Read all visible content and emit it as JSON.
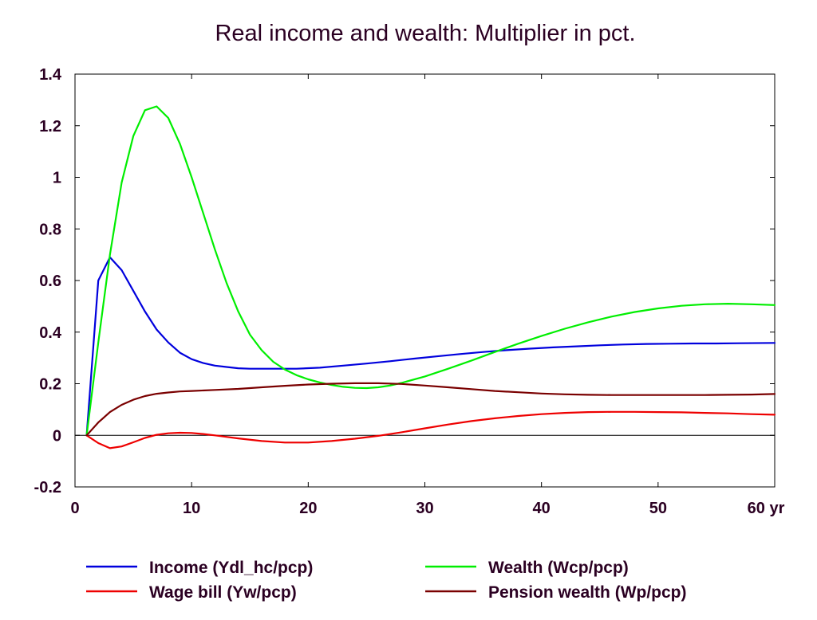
{
  "chart_data": {
    "type": "line",
    "title": "Real income and wealth: Multiplier in pct.",
    "x_unit": "yr",
    "xlim": [
      0,
      60
    ],
    "ylim": [
      -0.2,
      1.4
    ],
    "x_ticks": [
      0,
      10,
      20,
      30,
      40,
      50,
      60
    ],
    "y_ticks": [
      -0.2,
      0,
      0.2,
      0.4,
      0.6,
      0.8,
      1,
      1.2,
      1.4
    ],
    "y_tick_labels": [
      "-0.2",
      "0",
      "0.2",
      "0.4",
      "0.6",
      "0.8",
      "1",
      "1.2",
      "1.4"
    ],
    "x_tick_labels": [
      "0",
      "10",
      "20",
      "30",
      "40",
      "50",
      "60 yr"
    ],
    "grid": false,
    "legend_position": "bottom",
    "series": [
      {
        "name": "Income (Ydl_hc/pcp)",
        "color": "#0000dd",
        "x": [
          1,
          2,
          3,
          4,
          5,
          6,
          7,
          8,
          9,
          10,
          11,
          12,
          13,
          14,
          15,
          17,
          19,
          21,
          23,
          25,
          27,
          29,
          31,
          33,
          35,
          37,
          39,
          41,
          43,
          45,
          47,
          49,
          51,
          53,
          55,
          57,
          60
        ],
        "y": [
          0.0,
          0.6,
          0.69,
          0.64,
          0.56,
          0.48,
          0.41,
          0.36,
          0.32,
          0.295,
          0.28,
          0.27,
          0.265,
          0.26,
          0.258,
          0.258,
          0.258,
          0.262,
          0.27,
          0.278,
          0.287,
          0.297,
          0.306,
          0.315,
          0.323,
          0.33,
          0.336,
          0.341,
          0.345,
          0.349,
          0.352,
          0.354,
          0.355,
          0.356,
          0.356,
          0.357,
          0.358
        ]
      },
      {
        "name": "Wealth (Wcp/pcp)",
        "color": "#00ee00",
        "x": [
          1,
          2,
          3,
          4,
          5,
          6,
          7,
          8,
          9,
          10,
          11,
          12,
          13,
          14,
          15,
          16,
          17,
          18,
          19,
          20,
          21,
          22,
          23,
          24,
          25,
          26,
          27,
          28,
          30,
          32,
          34,
          36,
          38,
          40,
          42,
          44,
          46,
          48,
          50,
          52,
          54,
          56,
          58,
          60
        ],
        "y": [
          0.0,
          0.36,
          0.7,
          0.98,
          1.16,
          1.26,
          1.275,
          1.23,
          1.13,
          1.0,
          0.86,
          0.72,
          0.59,
          0.48,
          0.39,
          0.33,
          0.285,
          0.255,
          0.233,
          0.217,
          0.205,
          0.195,
          0.188,
          0.184,
          0.183,
          0.186,
          0.193,
          0.203,
          0.228,
          0.258,
          0.29,
          0.323,
          0.355,
          0.385,
          0.413,
          0.438,
          0.46,
          0.478,
          0.492,
          0.502,
          0.508,
          0.51,
          0.508,
          0.505
        ]
      },
      {
        "name": "Wage bill (Yw/pcp)",
        "color": "#ee0000",
        "x": [
          1,
          2,
          3,
          4,
          5,
          6,
          7,
          8,
          9,
          10,
          11,
          12,
          14,
          16,
          18,
          20,
          22,
          24,
          26,
          28,
          30,
          32,
          34,
          36,
          38,
          40,
          42,
          44,
          46,
          48,
          50,
          52,
          54,
          56,
          58,
          60
        ],
        "y": [
          0.0,
          -0.03,
          -0.05,
          -0.043,
          -0.027,
          -0.01,
          0.002,
          0.008,
          0.01,
          0.009,
          0.005,
          0.0,
          -0.012,
          -0.022,
          -0.028,
          -0.028,
          -0.022,
          -0.013,
          -0.002,
          0.012,
          0.027,
          0.042,
          0.055,
          0.066,
          0.075,
          0.082,
          0.087,
          0.09,
          0.091,
          0.091,
          0.09,
          0.089,
          0.087,
          0.085,
          0.082,
          0.08
        ]
      },
      {
        "name": "Pension wealth (Wp/pcp)",
        "color": "#7a0000",
        "x": [
          1,
          2,
          3,
          4,
          5,
          6,
          7,
          8,
          9,
          10,
          12,
          14,
          16,
          18,
          20,
          22,
          24,
          26,
          28,
          30,
          32,
          34,
          36,
          38,
          40,
          42,
          44,
          46,
          48,
          50,
          52,
          54,
          56,
          58,
          60
        ],
        "y": [
          0.0,
          0.05,
          0.09,
          0.118,
          0.138,
          0.152,
          0.161,
          0.166,
          0.17,
          0.172,
          0.176,
          0.18,
          0.186,
          0.192,
          0.197,
          0.2,
          0.202,
          0.202,
          0.199,
          0.193,
          0.186,
          0.179,
          0.172,
          0.167,
          0.162,
          0.159,
          0.157,
          0.156,
          0.156,
          0.156,
          0.156,
          0.156,
          0.157,
          0.158,
          0.16
        ]
      }
    ]
  }
}
